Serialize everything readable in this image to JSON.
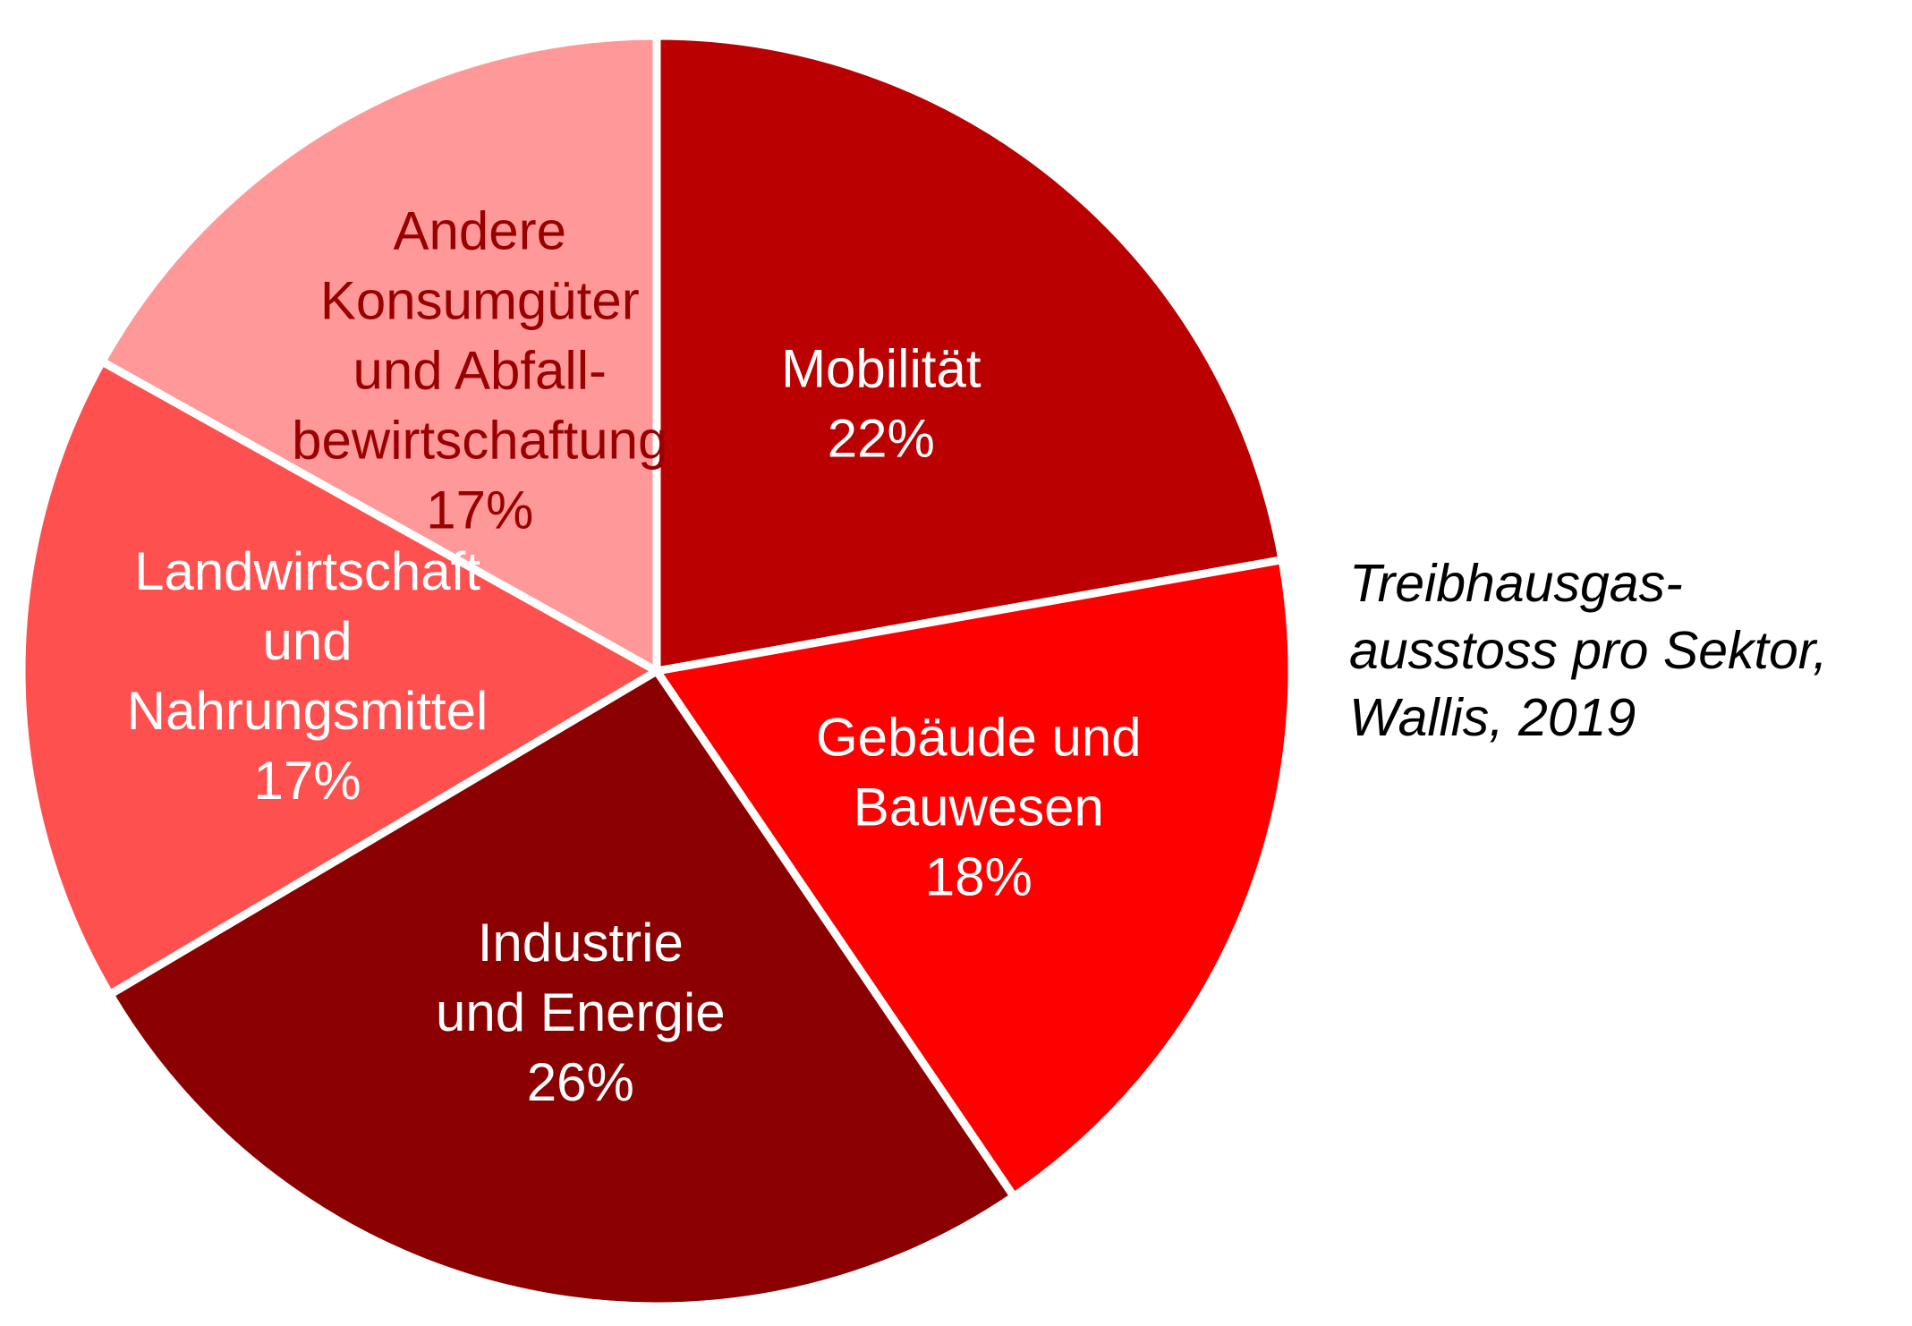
{
  "chart_data": {
    "type": "pie",
    "title_lines": [
      "Treibhausgas-",
      "ausstoss pro Sektor,",
      "Wallis, 2019"
    ],
    "start_angle_deg": 0,
    "direction": "clockwise",
    "slices": [
      {
        "label_lines": [
          "Mobilität"
        ],
        "pct_label": "22%",
        "value": 22.2,
        "color": "#BA0000",
        "text_color": "#FFFFFF"
      },
      {
        "label_lines": [
          "Gebäude und",
          "Bauwesen"
        ],
        "pct_label": "18%",
        "value": 18.3,
        "color": "#FF0000",
        "text_color": "#FFFFFF"
      },
      {
        "label_lines": [
          "Industrie",
          "und Energie"
        ],
        "pct_label": "26%",
        "value": 26.0,
        "color": "#8B0000",
        "text_color": "#FFFFFF"
      },
      {
        "label_lines": [
          "Landwirtschaft",
          "und",
          "Nahrungsmittel"
        ],
        "pct_label": "17%",
        "value": 16.6,
        "color": "#FF5050",
        "text_color": "#FFFFFF"
      },
      {
        "label_lines": [
          "Andere",
          "Konsumgüter",
          "und Abfall-",
          "bewirtschaftung"
        ],
        "pct_label": "17%",
        "value": 16.9,
        "color": "#FF9999",
        "text_color": "#9A0000"
      }
    ]
  }
}
